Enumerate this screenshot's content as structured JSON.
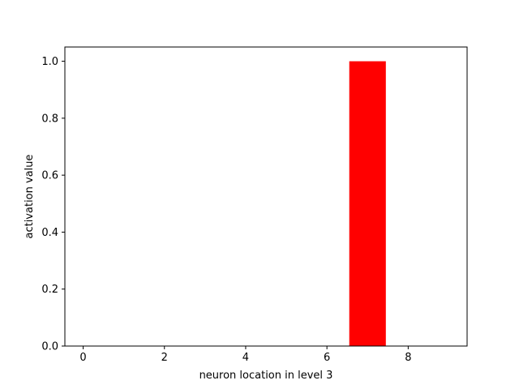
{
  "chart_data": {
    "type": "bar",
    "title": "",
    "xlabel": "neuron location in level 3",
    "ylabel": "activation value",
    "x": [
      0,
      1,
      2,
      3,
      4,
      5,
      6,
      7,
      8,
      9
    ],
    "values": [
      0,
      0,
      0,
      0,
      0,
      0,
      0,
      1.0,
      0,
      0
    ],
    "bar_width": 0.9,
    "bar_color": "#ff0000",
    "xlim": [
      -0.45,
      9.45
    ],
    "ylim": [
      0,
      1.05
    ],
    "xticks": [
      0,
      2,
      4,
      6,
      8
    ],
    "xtick_labels": [
      "0",
      "2",
      "4",
      "6",
      "8"
    ],
    "yticks": [
      0.0,
      0.2,
      0.4,
      0.6,
      0.8,
      1.0
    ],
    "ytick_labels": [
      "0.0",
      "0.2",
      "0.4",
      "0.6",
      "0.8",
      "1.0"
    ],
    "grid": false,
    "legend": "none"
  }
}
